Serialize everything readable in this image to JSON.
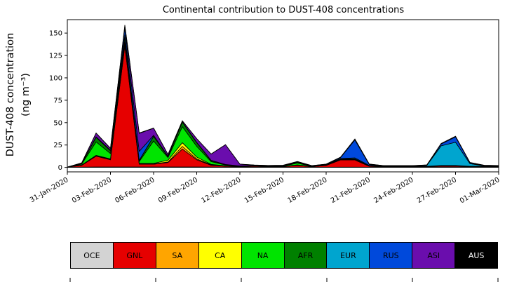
{
  "title": "Continental contribution to DUST-408 concentrations",
  "ylabel_line1": "DUST-408 concentration",
  "ylabel_line2": "(ng m⁻³)",
  "chart_data": {
    "type": "area",
    "stacked": true,
    "title": "Continental contribution to DUST-408 concentrations",
    "ylabel": "DUST-408 concentration (ng m⁻³)",
    "xlabel": "",
    "grid": false,
    "legend_position": "bottom",
    "ylim": [
      -5,
      165
    ],
    "yticks": [
      0,
      25,
      50,
      75,
      100,
      125,
      150
    ],
    "x": [
      "31-Jan-2020",
      "01-Feb-2020",
      "02-Feb-2020",
      "03-Feb-2020",
      "04-Feb-2020",
      "05-Feb-2020",
      "06-Feb-2020",
      "07-Feb-2020",
      "08-Feb-2020",
      "09-Feb-2020",
      "10-Feb-2020",
      "11-Feb-2020",
      "12-Feb-2020",
      "13-Feb-2020",
      "14-Feb-2020",
      "15-Feb-2020",
      "16-Feb-2020",
      "17-Feb-2020",
      "18-Feb-2020",
      "19-Feb-2020",
      "20-Feb-2020",
      "21-Feb-2020",
      "22-Feb-2020",
      "23-Feb-2020",
      "24-Feb-2020",
      "25-Feb-2020",
      "26-Feb-2020",
      "27-Feb-2020",
      "28-Feb-2020",
      "29-Feb-2020",
      "01-Mar-2020"
    ],
    "xtick_indices": [
      0,
      3,
      6,
      9,
      12,
      15,
      18,
      21,
      24,
      27,
      30
    ],
    "xtick_labels": [
      "31-Jan-2020",
      "03-Feb-2020",
      "06-Feb-2020",
      "09-Feb-2020",
      "12-Feb-2020",
      "15-Feb-2020",
      "18-Feb-2020",
      "21-Feb-2020",
      "24-Feb-2020",
      "27-Feb-2020",
      "01-Mar-2020"
    ],
    "series": [
      {
        "label": "OCE",
        "color": "#d3d3d3",
        "text_color": "#000000",
        "values": [
          0.2,
          0.3,
          0.5,
          0.5,
          0.5,
          0.5,
          0.5,
          0.5,
          0.5,
          0.5,
          0.4,
          0.3,
          0.2,
          0.2,
          0.2,
          0.2,
          0.3,
          0.2,
          0.2,
          0.3,
          0.3,
          0.2,
          0.2,
          0.2,
          0.2,
          0.2,
          0.3,
          0.3,
          0.2,
          0.2,
          0.2
        ]
      },
      {
        "label": "GNL",
        "color": "#e60000",
        "text_color": "#000000",
        "values": [
          0.2,
          2,
          12,
          8,
          135,
          3,
          3,
          5,
          20,
          8,
          2,
          1,
          0.5,
          1,
          0.5,
          0.5,
          2,
          0.5,
          2,
          8,
          8,
          1,
          0.5,
          0.5,
          0.5,
          0.5,
          1,
          1,
          0.5,
          0.5,
          0.5
        ]
      },
      {
        "label": "SA",
        "color": "#ffa500",
        "text_color": "#000000",
        "values": [
          0,
          0.2,
          0.5,
          0.5,
          3,
          0.5,
          0.5,
          0.5,
          3,
          1,
          0.5,
          0.2,
          0.1,
          0.1,
          0.1,
          0.1,
          0.2,
          0.1,
          0.1,
          0.3,
          0.3,
          0.1,
          0.1,
          0.1,
          0.1,
          0.1,
          0.2,
          0.2,
          0.1,
          0.1,
          0.1
        ]
      },
      {
        "label": "CA",
        "color": "#ffff00",
        "text_color": "#000000",
        "values": [
          0,
          0.2,
          0.5,
          0.5,
          2,
          0.5,
          0.5,
          2,
          4,
          2,
          0.5,
          0.2,
          0.1,
          0.1,
          0.1,
          0.1,
          0.3,
          0.1,
          0.1,
          0.2,
          0.2,
          0.1,
          0.1,
          0.1,
          0.1,
          0.1,
          0.1,
          0.1,
          0.1,
          0.1,
          0.1
        ]
      },
      {
        "label": "NA",
        "color": "#00e400",
        "text_color": "#000000",
        "values": [
          0,
          1,
          15,
          6,
          5,
          2,
          25,
          3,
          18,
          12,
          3,
          1,
          0.3,
          0.3,
          0.3,
          0.5,
          2,
          0.3,
          0.3,
          0.5,
          0.5,
          0.3,
          0.2,
          0.2,
          0.2,
          0.2,
          0.3,
          0.3,
          0.2,
          0.2,
          0.2
        ]
      },
      {
        "label": "AFR",
        "color": "#008000",
        "text_color": "#000000",
        "values": [
          0,
          0.5,
          5,
          3,
          2,
          1,
          5,
          1,
          5,
          4,
          1,
          0.3,
          0.2,
          0.2,
          0.2,
          0.2,
          1,
          0.2,
          0.2,
          0.3,
          0.3,
          0.2,
          0.1,
          0.1,
          0.1,
          0.1,
          0.2,
          0.2,
          0.1,
          0.1,
          0.1
        ]
      },
      {
        "label": "EUR",
        "color": "#00a5cf",
        "text_color": "#000000",
        "values": [
          0,
          0.1,
          0.2,
          0.2,
          0.5,
          0.5,
          0.3,
          0.2,
          0.2,
          0.2,
          0.2,
          0.1,
          0.1,
          0.1,
          0.1,
          0.1,
          0.1,
          0.1,
          0.1,
          0.3,
          1,
          0.3,
          0.2,
          0.2,
          0.2,
          1,
          22,
          26,
          3,
          0.5,
          0.3
        ]
      },
      {
        "label": "RUS",
        "color": "#0049db",
        "text_color": "#000000",
        "values": [
          0,
          0.2,
          0.5,
          0.5,
          8,
          10,
          1,
          0.3,
          0.3,
          0.3,
          0.3,
          0.2,
          0.1,
          0.1,
          0.1,
          0.1,
          0.1,
          0.1,
          0.3,
          1,
          20,
          1,
          0.2,
          0.2,
          0.2,
          0.2,
          2,
          6,
          1,
          0.3,
          0.2
        ]
      },
      {
        "label": "ASI",
        "color": "#6a0dad",
        "text_color": "#000000",
        "values": [
          0,
          0.5,
          4,
          2,
          2,
          20,
          8,
          2,
          1,
          4,
          7,
          22,
          2,
          0.5,
          0.5,
          0.5,
          0.5,
          0.3,
          0.3,
          0.5,
          1,
          0.5,
          0.3,
          0.3,
          0.3,
          0.3,
          0.5,
          0.5,
          0.3,
          0.3,
          0.3
        ]
      },
      {
        "label": "AUS",
        "color": "#000000",
        "text_color": "#ffffff",
        "values": [
          0,
          0.1,
          0.2,
          0.2,
          1,
          0.5,
          0.2,
          0.1,
          0.1,
          0.1,
          0.1,
          0.1,
          0.1,
          0.1,
          0.1,
          0.1,
          0.1,
          0.1,
          0.1,
          0.1,
          0.2,
          0.1,
          0.1,
          0.1,
          0.1,
          0.1,
          0.2,
          0.2,
          0.1,
          0.1,
          0.1
        ]
      }
    ]
  }
}
